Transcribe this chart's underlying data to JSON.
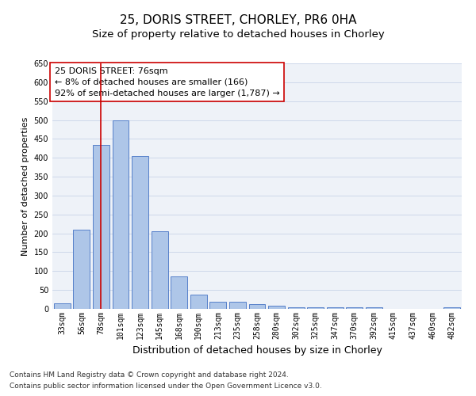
{
  "title1": "25, DORIS STREET, CHORLEY, PR6 0HA",
  "title2": "Size of property relative to detached houses in Chorley",
  "xlabel": "Distribution of detached houses by size in Chorley",
  "ylabel": "Number of detached properties",
  "categories": [
    "33sqm",
    "56sqm",
    "78sqm",
    "101sqm",
    "123sqm",
    "145sqm",
    "168sqm",
    "190sqm",
    "213sqm",
    "235sqm",
    "258sqm",
    "280sqm",
    "302sqm",
    "325sqm",
    "347sqm",
    "370sqm",
    "392sqm",
    "415sqm",
    "437sqm",
    "460sqm",
    "482sqm"
  ],
  "values": [
    15,
    210,
    435,
    500,
    405,
    205,
    85,
    38,
    18,
    18,
    12,
    8,
    5,
    5,
    5,
    5,
    5,
    0,
    0,
    0,
    5
  ],
  "bar_color": "#aec6e8",
  "bar_edge_color": "#4472c4",
  "grid_color": "#c8d4e8",
  "marker_x": "78sqm",
  "marker_color": "#cc0000",
  "annotation_title": "25 DORIS STREET: 76sqm",
  "annotation_line1": "← 8% of detached houses are smaller (166)",
  "annotation_line2": "92% of semi-detached houses are larger (1,787) →",
  "annotation_box_color": "#cc0000",
  "ylim": [
    0,
    650
  ],
  "footer1": "Contains HM Land Registry data © Crown copyright and database right 2024.",
  "footer2": "Contains public sector information licensed under the Open Government Licence v3.0.",
  "title1_fontsize": 11,
  "title2_fontsize": 9.5,
  "xlabel_fontsize": 9,
  "ylabel_fontsize": 8,
  "tick_fontsize": 7,
  "annotation_fontsize": 8,
  "footer_fontsize": 6.5
}
